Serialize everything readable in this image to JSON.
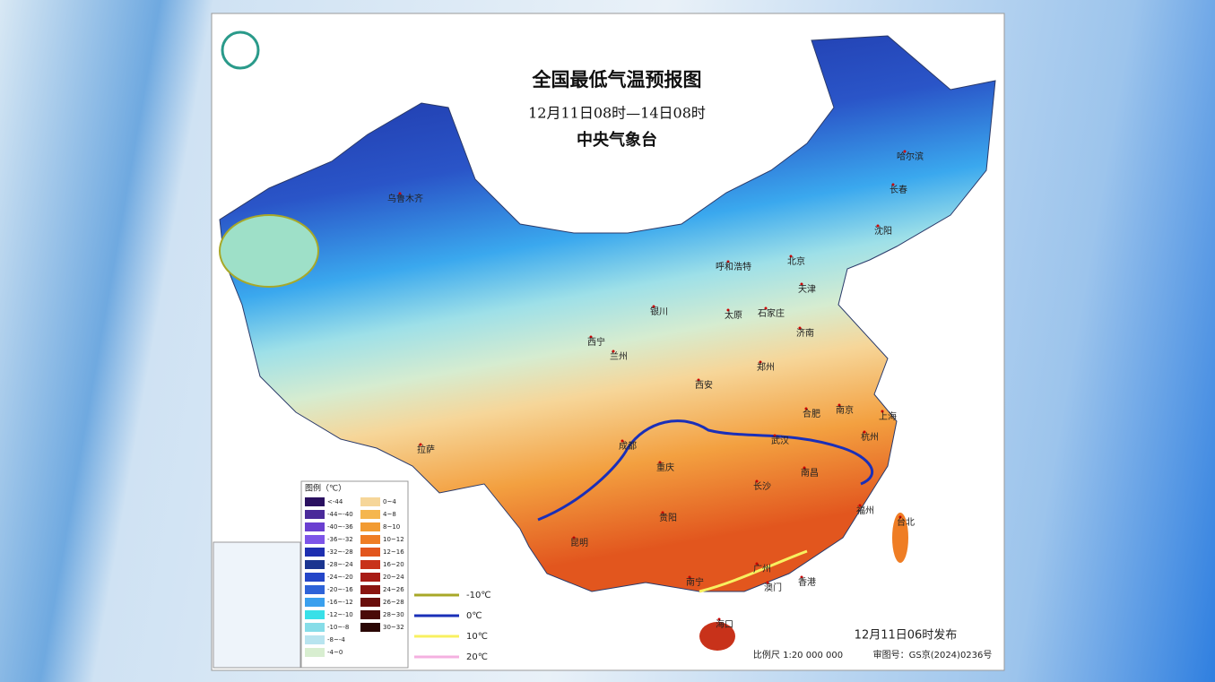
{
  "header": {
    "title": "全国最低气温预报图",
    "period": "12月11日08时—14日08时",
    "issuer": "中央气象台"
  },
  "cities": [
    "乌鲁木齐",
    "哈尔滨",
    "长春",
    "沈阳",
    "呼和浩特",
    "北京",
    "天津",
    "银川",
    "太原",
    "石家庄",
    "西宁",
    "兰州",
    "济南",
    "郑州",
    "西安",
    "合肥",
    "南京",
    "上海",
    "杭州",
    "成都",
    "武汉",
    "南昌",
    "重庆",
    "长沙",
    "贵阳",
    "福州",
    "台北",
    "昆明",
    "南宁",
    "广州",
    "澳门",
    "香港",
    "海口",
    "拉萨"
  ],
  "legend": {
    "title": "图例（℃）",
    "left": [
      {
        "label": "<-44",
        "color": "#2a1060"
      },
      {
        "label": "-44~-40",
        "color": "#4a2a9a"
      },
      {
        "label": "-40~-36",
        "color": "#6a3fd0"
      },
      {
        "label": "-36~-32",
        "color": "#7d55e8"
      },
      {
        "label": "-32~-28",
        "color": "#1e2fb0"
      },
      {
        "label": "-28~-24",
        "color": "#1b3590"
      },
      {
        "label": "-24~-20",
        "color": "#2446c8"
      },
      {
        "label": "-20~-16",
        "color": "#2e63d8"
      },
      {
        "label": "-16~-12",
        "color": "#3aa0ee"
      },
      {
        "label": "-12~-10",
        "color": "#38e0e8"
      },
      {
        "label": "-10~-8",
        "color": "#86dde8"
      },
      {
        "label": "-8~-4",
        "color": "#b8e4ef"
      },
      {
        "label": "-4~0",
        "color": "#d8eed0"
      }
    ],
    "right": [
      {
        "label": "0~4",
        "color": "#f6d699"
      },
      {
        "label": "4~8",
        "color": "#f5b64e"
      },
      {
        "label": "8~10",
        "color": "#f29b32"
      },
      {
        "label": "10~12",
        "color": "#ef7d24"
      },
      {
        "label": "12~16",
        "color": "#e2561e"
      },
      {
        "label": "16~20",
        "color": "#c8321a"
      },
      {
        "label": "20~24",
        "color": "#a81c16"
      },
      {
        "label": "24~26",
        "color": "#8a1410"
      },
      {
        "label": "26~28",
        "color": "#6a0e0c"
      },
      {
        "label": "28~30",
        "color": "#4a0a08"
      },
      {
        "label": "30~32",
        "color": "#2a0604"
      }
    ]
  },
  "isotherms": [
    {
      "label": "-10℃",
      "color": "#a8a828"
    },
    {
      "label": "0℃",
      "color": "#1a2fb8"
    },
    {
      "label": "10℃",
      "color": "#f8f060"
    },
    {
      "label": "20℃",
      "color": "#f4b0e0"
    }
  ],
  "footer": {
    "published": "12月11日06时发布",
    "scale": "比例尺 1:20 000 000",
    "approval": "审图号：GS京(2024)0236号"
  }
}
